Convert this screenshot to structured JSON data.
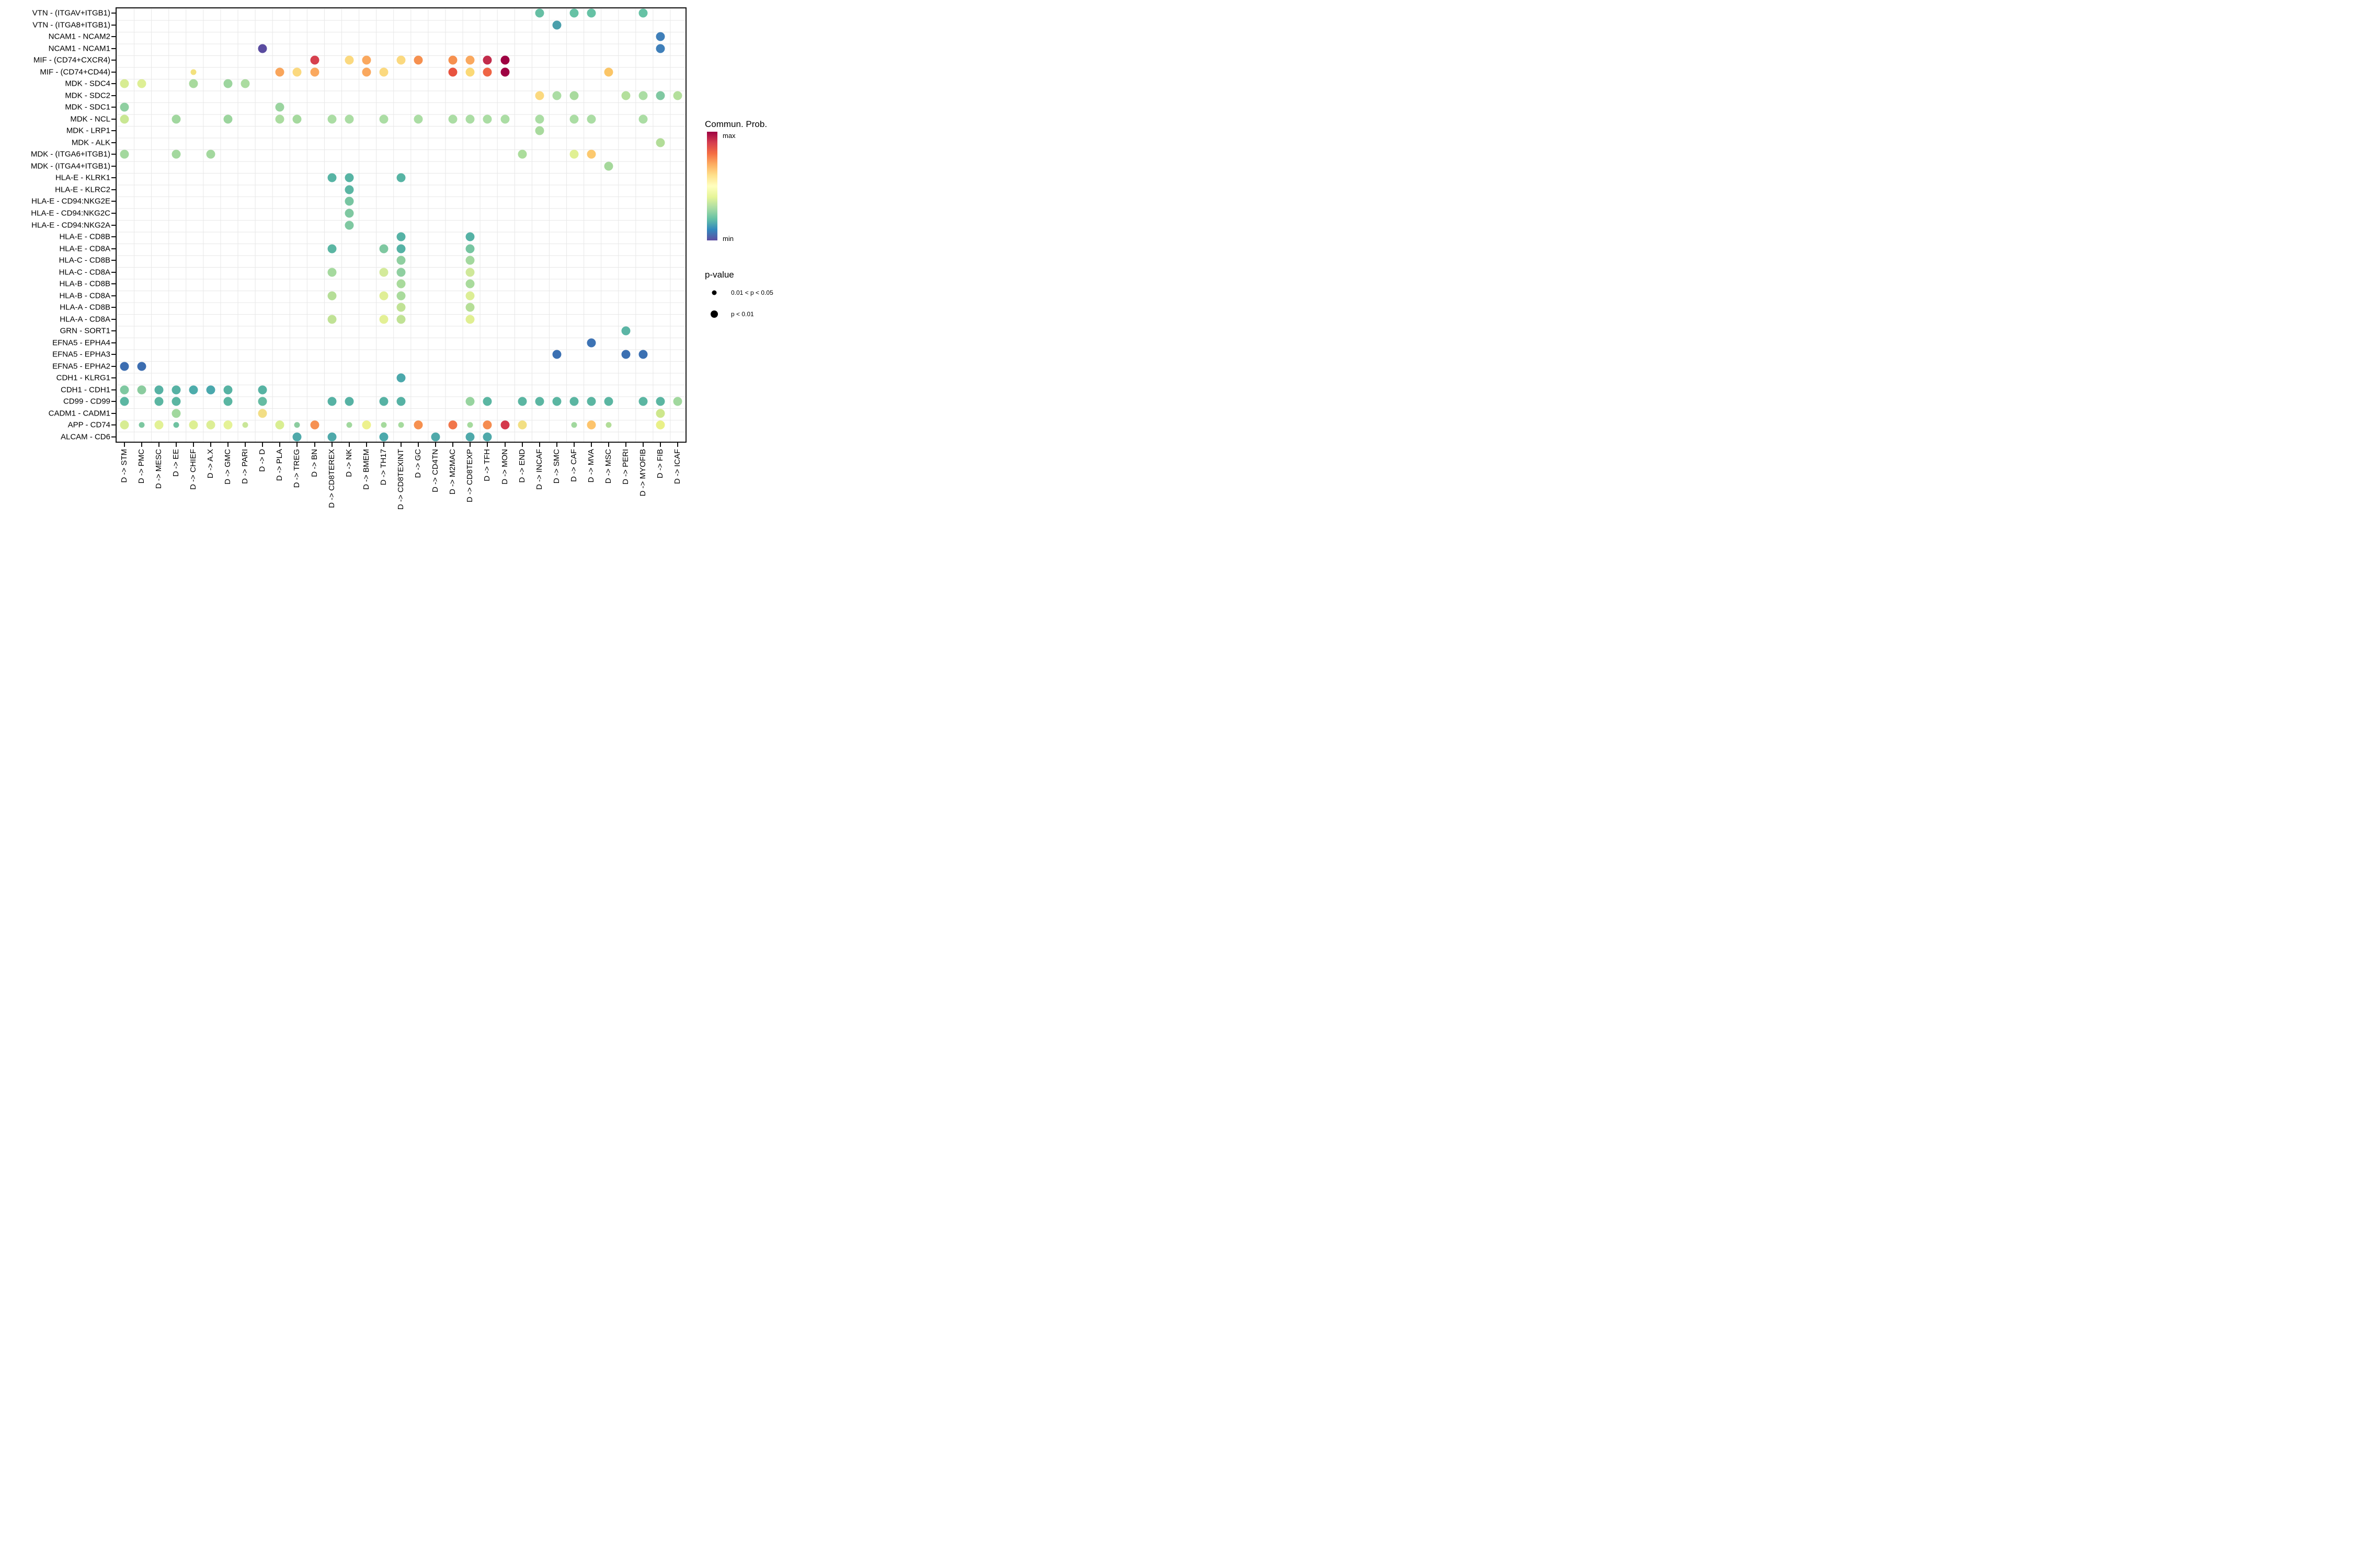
{
  "legend": {
    "color": {
      "title": "Commun. Prob.",
      "max_label": "max",
      "min_label": "min",
      "gradient_top_to_bottom": [
        "#9E0142",
        "#D53E4F",
        "#F46D43",
        "#FDAE61",
        "#FEE08B",
        "#FFFFBF",
        "#E6F598",
        "#ABDDA4",
        "#66C2A5",
        "#3288BD",
        "#5E4FA2"
      ]
    },
    "size": {
      "title": "p-value",
      "items": [
        {
          "label": "0.01 < p < 0.05",
          "size": "small"
        },
        {
          "label": "p < 0.01",
          "size": "large"
        }
      ]
    }
  },
  "chart_data": {
    "type": "scatter",
    "subtype": "bubble-matrix-dotplot",
    "grid": true,
    "color_scale": {
      "palette": "Spectral reversed",
      "min_label": "min",
      "max_label": "max"
    },
    "size_scale": {
      "small": "0.01 < p < 0.05",
      "large": "p < 0.01"
    },
    "x_categories": [
      "D -> STM",
      "D -> PMC",
      "D -> MESC",
      "D -> EE",
      "D -> CHIEF",
      "D -> A.X",
      "D -> GMC",
      "D -> PARI",
      "D -> D",
      "D -> PLA",
      "D -> TREG",
      "D -> BN",
      "D -> CD8TEREX",
      "D -> NK",
      "D -> BMEM",
      "D -> TH17",
      "D -> CD8TEXINT",
      "D -> GC",
      "D -> CD4TN",
      "D -> M2MAC",
      "D -> CD8TEXP",
      "D -> TFH",
      "D -> MON",
      "D -> END",
      "D -> INCAF",
      "D -> SMC",
      "D -> CAF",
      "D -> MVA",
      "D -> MSC",
      "D -> PERI",
      "D -> MYOFIB",
      "D -> FIB",
      "D -> ICAF"
    ],
    "y_categories": [
      "VTN - (ITGAV+ITGB1)",
      "VTN - (ITGA8+ITGB1)",
      "NCAM1 - NCAM2",
      "NCAM1 - NCAM1",
      "MIF - (CD74+CXCR4)",
      "MIF - (CD74+CD44)",
      "MDK - SDC4",
      "MDK - SDC2",
      "MDK - SDC1",
      "MDK - NCL",
      "MDK - LRP1",
      "MDK - ALK",
      "MDK - (ITGA6+ITGB1)",
      "MDK - (ITGA4+ITGB1)",
      "HLA-E - KLRK1",
      "HLA-E - KLRC2",
      "HLA-E - CD94:NKG2E",
      "HLA-E - CD94:NKG2C",
      "HLA-E - CD94:NKG2A",
      "HLA-E - CD8B",
      "HLA-E - CD8A",
      "HLA-C - CD8B",
      "HLA-C - CD8A",
      "HLA-B - CD8B",
      "HLA-B - CD8A",
      "HLA-A - CD8B",
      "HLA-A - CD8A",
      "GRN - SORT1",
      "EFNA5 - EPHA4",
      "EFNA5 - EPHA3",
      "EFNA5 - EPHA2",
      "CDH1 - KLRG1",
      "CDH1 - CDH1",
      "CD99 - CD99",
      "CADM1 - CADM1",
      "APP - CD74",
      "ALCAM - CD6"
    ],
    "points_format": [
      "y_index",
      "x_index",
      "color",
      "size L=p<0.01 S=0.01<p<0.05"
    ],
    "points": [
      [
        0,
        24,
        "#66BFA4",
        "L"
      ],
      [
        0,
        26,
        "#66C2A5",
        "L"
      ],
      [
        0,
        27,
        "#66C2A5",
        "L"
      ],
      [
        0,
        30,
        "#66C2A5",
        "L"
      ],
      [
        1,
        25,
        "#4A9FAB",
        "L"
      ],
      [
        2,
        31,
        "#3F7FB9",
        "L"
      ],
      [
        3,
        8,
        "#5A4CA0",
        "L"
      ],
      [
        3,
        31,
        "#3F7FB9",
        "L"
      ],
      [
        4,
        11,
        "#D6404E",
        "L"
      ],
      [
        4,
        13,
        "#FBD97F",
        "L"
      ],
      [
        4,
        14,
        "#FAA85E",
        "L"
      ],
      [
        4,
        16,
        "#FBD97F",
        "L"
      ],
      [
        4,
        17,
        "#F6904F",
        "L"
      ],
      [
        4,
        19,
        "#F6904F",
        "L"
      ],
      [
        4,
        20,
        "#FAA85E",
        "L"
      ],
      [
        4,
        21,
        "#C22C4B",
        "L"
      ],
      [
        4,
        22,
        "#9E0142",
        "L"
      ],
      [
        5,
        4,
        "#F3E17D",
        "S"
      ],
      [
        5,
        9,
        "#F9A55B",
        "L"
      ],
      [
        5,
        10,
        "#FBD97F",
        "L"
      ],
      [
        5,
        11,
        "#FAA85E",
        "L"
      ],
      [
        5,
        14,
        "#FAA85E",
        "L"
      ],
      [
        5,
        15,
        "#FBD97F",
        "L"
      ],
      [
        5,
        19,
        "#E8533F",
        "L"
      ],
      [
        5,
        20,
        "#FBD976",
        "L"
      ],
      [
        5,
        21,
        "#EF6545",
        "L"
      ],
      [
        5,
        22,
        "#9E0142",
        "L"
      ],
      [
        5,
        28,
        "#FBC566",
        "L"
      ],
      [
        6,
        0,
        "#D7EC92",
        "L"
      ],
      [
        6,
        1,
        "#DEEF95",
        "L"
      ],
      [
        6,
        4,
        "#A8DA9D",
        "L"
      ],
      [
        6,
        6,
        "#9CD59E",
        "L"
      ],
      [
        6,
        7,
        "#ABDCA0",
        "L"
      ],
      [
        7,
        24,
        "#FBD97F",
        "L"
      ],
      [
        7,
        25,
        "#ABDDA4",
        "L"
      ],
      [
        7,
        26,
        "#A8DA9D",
        "L"
      ],
      [
        7,
        29,
        "#B3DF9B",
        "L"
      ],
      [
        7,
        30,
        "#ABDDA4",
        "L"
      ],
      [
        7,
        31,
        "#7FC8A1",
        "L"
      ],
      [
        7,
        32,
        "#B3DF9B",
        "L"
      ],
      [
        8,
        0,
        "#8FCFA0",
        "L"
      ],
      [
        8,
        9,
        "#9AD49F",
        "L"
      ],
      [
        9,
        0,
        "#C9E793",
        "L"
      ],
      [
        9,
        3,
        "#A1D79F",
        "L"
      ],
      [
        9,
        6,
        "#9CD59E",
        "L"
      ],
      [
        9,
        9,
        "#ABDCA0",
        "L"
      ],
      [
        9,
        10,
        "#A5D99E",
        "L"
      ],
      [
        9,
        12,
        "#ABDDA4",
        "L"
      ],
      [
        9,
        13,
        "#ABDDA4",
        "L"
      ],
      [
        9,
        15,
        "#ABDDA4",
        "L"
      ],
      [
        9,
        17,
        "#ABDDA4",
        "L"
      ],
      [
        9,
        19,
        "#ABDDA4",
        "L"
      ],
      [
        9,
        20,
        "#ABDDA4",
        "L"
      ],
      [
        9,
        21,
        "#ABDDA4",
        "L"
      ],
      [
        9,
        22,
        "#ABDDA4",
        "L"
      ],
      [
        9,
        24,
        "#ABDDA4",
        "L"
      ],
      [
        9,
        26,
        "#ABDDA4",
        "L"
      ],
      [
        9,
        27,
        "#ABDDA4",
        "L"
      ],
      [
        9,
        30,
        "#ABDDA4",
        "L"
      ],
      [
        10,
        24,
        "#A8DA9D",
        "L"
      ],
      [
        11,
        31,
        "#B2DD98",
        "L"
      ],
      [
        12,
        0,
        "#A3D89E",
        "L"
      ],
      [
        12,
        3,
        "#A3D89E",
        "L"
      ],
      [
        12,
        5,
        "#A3D89E",
        "L"
      ],
      [
        12,
        23,
        "#ABDD9B",
        "L"
      ],
      [
        12,
        26,
        "#E0F093",
        "L"
      ],
      [
        12,
        27,
        "#FCC96F",
        "L"
      ],
      [
        13,
        28,
        "#A5D89B",
        "L"
      ],
      [
        14,
        12,
        "#57B4A4",
        "L"
      ],
      [
        14,
        13,
        "#57B4A4",
        "L"
      ],
      [
        14,
        16,
        "#57B4A4",
        "L"
      ],
      [
        15,
        13,
        "#5BB6A3",
        "L"
      ],
      [
        16,
        13,
        "#77C5A1",
        "L"
      ],
      [
        17,
        13,
        "#7FC8A1",
        "L"
      ],
      [
        18,
        13,
        "#7FC8A1",
        "L"
      ],
      [
        19,
        16,
        "#55B2A5",
        "L"
      ],
      [
        19,
        20,
        "#55B2A5",
        "L"
      ],
      [
        20,
        12,
        "#5BB6A3",
        "L"
      ],
      [
        20,
        15,
        "#7FC8A1",
        "L"
      ],
      [
        20,
        16,
        "#55B2A5",
        "L"
      ],
      [
        20,
        20,
        "#77C5A1",
        "L"
      ],
      [
        21,
        16,
        "#8FCFA0",
        "L"
      ],
      [
        21,
        20,
        "#A3D89E",
        "L"
      ],
      [
        22,
        12,
        "#A5D99E",
        "L"
      ],
      [
        22,
        15,
        "#D3EA9A",
        "L"
      ],
      [
        22,
        16,
        "#8FCFA0",
        "L"
      ],
      [
        22,
        20,
        "#CFE899",
        "L"
      ],
      [
        23,
        16,
        "#A9DB9C",
        "L"
      ],
      [
        23,
        20,
        "#A9DB9C",
        "L"
      ],
      [
        24,
        12,
        "#B5DE97",
        "L"
      ],
      [
        24,
        15,
        "#DFEE96",
        "L"
      ],
      [
        24,
        16,
        "#A9DB9C",
        "L"
      ],
      [
        24,
        20,
        "#DCEE95",
        "L"
      ],
      [
        25,
        16,
        "#C0E295",
        "L"
      ],
      [
        25,
        20,
        "#B5DE97",
        "L"
      ],
      [
        26,
        12,
        "#C0E295",
        "L"
      ],
      [
        26,
        15,
        "#E3F095",
        "L"
      ],
      [
        26,
        16,
        "#C0E295",
        "L"
      ],
      [
        26,
        20,
        "#E0EF92",
        "L"
      ],
      [
        27,
        29,
        "#5BB5A5",
        "L"
      ],
      [
        28,
        27,
        "#3D73B4",
        "L"
      ],
      [
        29,
        25,
        "#3B70B2",
        "L"
      ],
      [
        29,
        29,
        "#3B70B2",
        "L"
      ],
      [
        29,
        30,
        "#3B70B2",
        "L"
      ],
      [
        30,
        0,
        "#3C6DB0",
        "L"
      ],
      [
        30,
        1,
        "#3C6DB0",
        "L"
      ],
      [
        31,
        16,
        "#4BA8AB",
        "L"
      ],
      [
        32,
        0,
        "#7FC8A1",
        "L"
      ],
      [
        32,
        1,
        "#8BCC9F",
        "L"
      ],
      [
        32,
        2,
        "#57B2A4",
        "L"
      ],
      [
        32,
        3,
        "#57B2A4",
        "L"
      ],
      [
        32,
        4,
        "#4DACAB",
        "L"
      ],
      [
        32,
        5,
        "#4AA8AD",
        "L"
      ],
      [
        32,
        6,
        "#57B3A3",
        "L"
      ],
      [
        32,
        8,
        "#57B3A3",
        "L"
      ],
      [
        33,
        0,
        "#5BB6A2",
        "L"
      ],
      [
        33,
        2,
        "#5BB6A2",
        "L"
      ],
      [
        33,
        3,
        "#5BB6A2",
        "L"
      ],
      [
        33,
        6,
        "#5BB6A2",
        "L"
      ],
      [
        33,
        8,
        "#66BCA3",
        "L"
      ],
      [
        33,
        12,
        "#56B2A4",
        "L"
      ],
      [
        33,
        13,
        "#56B2A4",
        "L"
      ],
      [
        33,
        15,
        "#56B2A4",
        "L"
      ],
      [
        33,
        16,
        "#56B2A4",
        "L"
      ],
      [
        33,
        20,
        "#97D49F",
        "L"
      ],
      [
        33,
        21,
        "#5BB6A2",
        "L"
      ],
      [
        33,
        23,
        "#5BB6A2",
        "L"
      ],
      [
        33,
        24,
        "#5BB6A2",
        "L"
      ],
      [
        33,
        25,
        "#5BB6A2",
        "L"
      ],
      [
        33,
        26,
        "#5BB6A2",
        "L"
      ],
      [
        33,
        27,
        "#5BB6A2",
        "L"
      ],
      [
        33,
        28,
        "#5BB6A2",
        "L"
      ],
      [
        33,
        30,
        "#5BB6A2",
        "L"
      ],
      [
        33,
        31,
        "#5BB6A2",
        "L"
      ],
      [
        33,
        32,
        "#A1D89E",
        "L"
      ],
      [
        34,
        3,
        "#A1D89E",
        "L"
      ],
      [
        34,
        8,
        "#F2DE85",
        "L"
      ],
      [
        34,
        31,
        "#CDE78C",
        "L"
      ],
      [
        35,
        0,
        "#D7EC92",
        "L"
      ],
      [
        35,
        1,
        "#7CC7A0",
        "S"
      ],
      [
        35,
        2,
        "#E2F195",
        "L"
      ],
      [
        35,
        3,
        "#6FC2A1",
        "S"
      ],
      [
        35,
        4,
        "#DDEF93",
        "L"
      ],
      [
        35,
        5,
        "#DCEE95",
        "L"
      ],
      [
        35,
        6,
        "#E5F296",
        "L"
      ],
      [
        35,
        7,
        "#C9E698",
        "S"
      ],
      [
        35,
        9,
        "#D9EE92",
        "L"
      ],
      [
        35,
        10,
        "#8BCC9F",
        "S"
      ],
      [
        35,
        11,
        "#F69152",
        "L"
      ],
      [
        35,
        13,
        "#A1D89E",
        "S"
      ],
      [
        35,
        14,
        "#EDF18C",
        "L"
      ],
      [
        35,
        15,
        "#A5DA9D",
        "S"
      ],
      [
        35,
        16,
        "#A5DA9D",
        "S"
      ],
      [
        35,
        17,
        "#F6904F",
        "L"
      ],
      [
        35,
        19,
        "#F1764B",
        "L"
      ],
      [
        35,
        20,
        "#A5DA9D",
        "S"
      ],
      [
        35,
        21,
        "#F58C50",
        "L"
      ],
      [
        35,
        22,
        "#D4394C",
        "L"
      ],
      [
        35,
        23,
        "#F2DF83",
        "L"
      ],
      [
        35,
        26,
        "#A1D89E",
        "S"
      ],
      [
        35,
        27,
        "#FDC46C",
        "L"
      ],
      [
        35,
        28,
        "#B2DD98",
        "S"
      ],
      [
        35,
        31,
        "#E9F087",
        "L"
      ],
      [
        36,
        10,
        "#4FA9AA",
        "L"
      ],
      [
        36,
        12,
        "#4FA9AA",
        "L"
      ],
      [
        36,
        15,
        "#4BA9AB",
        "L"
      ],
      [
        36,
        18,
        "#4FA9AA",
        "L"
      ],
      [
        36,
        20,
        "#4FA9AA",
        "L"
      ],
      [
        36,
        21,
        "#4FA9AA",
        "L"
      ]
    ]
  }
}
